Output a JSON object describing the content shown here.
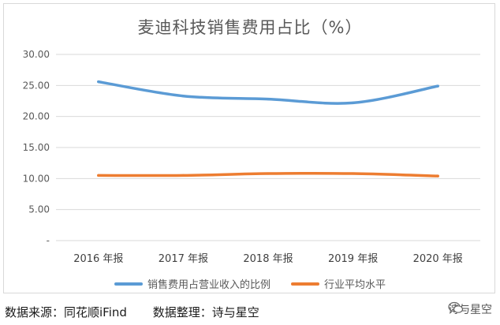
{
  "chart_data": {
    "type": "line",
    "title": "麦迪科技销售费用占比（%）",
    "categories": [
      "2016 年报",
      "2017 年报",
      "2018 年报",
      "2019 年报",
      "2020 年报"
    ],
    "series": [
      {
        "name": "销售费用占营业收入的比例",
        "color": "#5b9bd5",
        "values": [
          25.6,
          23.3,
          22.8,
          22.2,
          24.9
        ]
      },
      {
        "name": "行业平均水平",
        "color": "#ed7d31",
        "values": [
          10.5,
          10.5,
          10.8,
          10.8,
          10.4
        ]
      }
    ],
    "ylim": [
      0,
      30
    ],
    "yticks": [
      "-",
      "5.00",
      "10.00",
      "15.00",
      "20.00",
      "25.00",
      "30.00"
    ],
    "grid": true,
    "legend_position": "bottom"
  },
  "footer": {
    "source": "数据来源：同花顺iFind",
    "organizer": "数据整理：诗与星空"
  },
  "watermark": {
    "text": "诗与星空",
    "icon": "wechat-icon"
  }
}
